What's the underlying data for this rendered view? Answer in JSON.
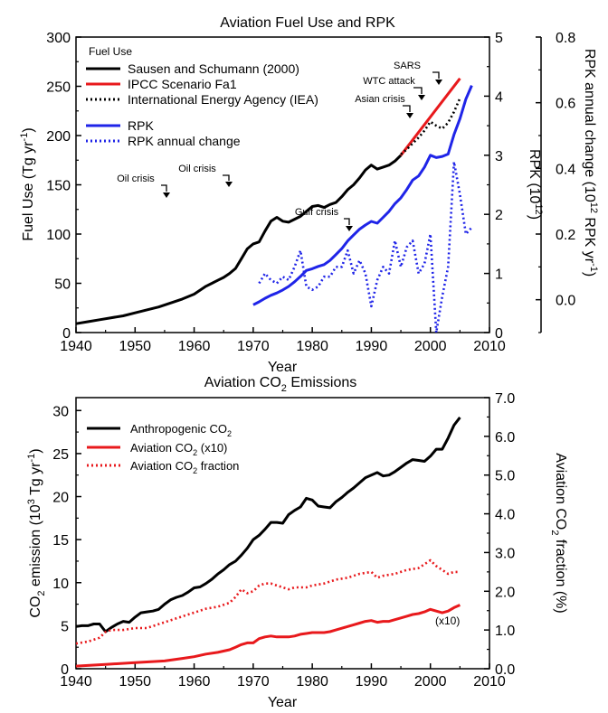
{
  "figure": {
    "charts": [
      {
        "title": "Aviation Fuel Use and RPK",
        "xlabel": "Year",
        "ylabel_left": "Fuel Use (Tg yr",
        "ylabel_left_sup": "-1",
        "ylabel_left_end": ")",
        "ylabel_right1": "RPK (10",
        "ylabel_right1_sup": "12",
        "ylabel_right1_end": ")",
        "ylabel_right2": "RPK annual change (10",
        "ylabel_right2_sup": "12",
        "ylabel_right2_mid": " RPK yr",
        "ylabel_right2_sup2": "-1",
        "ylabel_right2_end": ")",
        "legend": {
          "heading": "Fuel Use",
          "entries": [
            "Sausen and Schumann (2000)",
            "IPCC Scenario Fa1",
            "International Energy Agency (IEA)",
            "RPK",
            "RPK annual change"
          ]
        },
        "annotations": [
          "Oil crisis",
          "Oil crisis",
          "Gulf crisis",
          "Asian crisis",
          "WTC attack",
          "SARS"
        ],
        "x_ticks": [
          "1940",
          "1950",
          "1960",
          "1970",
          "1980",
          "1990",
          "2000",
          "2010"
        ],
        "y_left_ticks": [
          "0",
          "50",
          "100",
          "150",
          "200",
          "250",
          "300"
        ],
        "y_right1_ticks": [
          "0",
          "1",
          "2",
          "3",
          "4",
          "5"
        ],
        "y_right2_ticks": [
          "0.0",
          "0.2",
          "0.4",
          "0.6",
          "0.8"
        ]
      },
      {
        "title": "Aviation CO",
        "title_sub": "2",
        "title_end": " Emissions",
        "xlabel": "Year",
        "ylabel_left": "CO",
        "ylabel_left_sub": "2",
        "ylabel_left_mid": " emission (10",
        "ylabel_left_sup": "3",
        "ylabel_left_mid2": " Tg yr",
        "ylabel_left_sup2": "-1",
        "ylabel_left_end": ")",
        "ylabel_right": "Aviation CO",
        "ylabel_right_sub": "2",
        "ylabel_right_end": " fraction (%)",
        "legend": {
          "entries": [
            {
              "text": "Anthropogenic CO",
              "sub": "2",
              "end": ""
            },
            {
              "text": "Aviation CO",
              "sub": "2",
              "end": " (x10)"
            },
            {
              "text": "Aviation CO",
              "sub": "2",
              "end": " fraction"
            }
          ]
        },
        "annotation": "(x10)",
        "x_ticks": [
          "1940",
          "1950",
          "1960",
          "1970",
          "1980",
          "1990",
          "2000",
          "2010"
        ],
        "y_left_ticks": [
          "0",
          "5",
          "10",
          "15",
          "20",
          "25",
          "30"
        ],
        "y_right_ticks": [
          "0.0",
          "1.0",
          "2.0",
          "3.0",
          "4.0",
          "5.0",
          "6.0",
          "7.0"
        ]
      }
    ]
  },
  "chart_data": [
    {
      "type": "line",
      "title": "Aviation Fuel Use and RPK",
      "xlabel": "Year",
      "ylabel": "Fuel Use (Tg yr-1)",
      "xlim": [
        1940,
        2010
      ],
      "ylim": [
        0,
        300
      ],
      "y2lim_rpk": [
        0,
        5
      ],
      "y2lim_change": [
        -0.1,
        0.8
      ],
      "grid": false,
      "legend_position": "top-left",
      "series": [
        {
          "name": "Sausen and Schumann (2000)",
          "axis": "fuel",
          "style": "solid",
          "color": "#000000",
          "x": [
            1940,
            1942,
            1944,
            1946,
            1948,
            1950,
            1952,
            1954,
            1956,
            1958,
            1960,
            1961,
            1962,
            1963,
            1964,
            1965,
            1966,
            1967,
            1968,
            1969,
            1970,
            1971,
            1972,
            1973,
            1974,
            1975,
            1976,
            1977,
            1978,
            1979,
            1980,
            1981,
            1982,
            1983,
            1984,
            1985,
            1986,
            1987,
            1988,
            1989,
            1990,
            1991,
            1992,
            1993,
            1994,
            1995
          ],
          "y": [
            9,
            11,
            13,
            15,
            17,
            20,
            23,
            26,
            30,
            34,
            39,
            43,
            47,
            50,
            53,
            56,
            60,
            65,
            75,
            85,
            90,
            92,
            103,
            113,
            117,
            113,
            112,
            115,
            118,
            123,
            128,
            129,
            127,
            130,
            132,
            138,
            145,
            150,
            157,
            165,
            170,
            166,
            168,
            170,
            174,
            180
          ]
        },
        {
          "name": "IPCC Scenario Fa1",
          "axis": "fuel",
          "style": "solid",
          "color": "#e8191c",
          "x": [
            1995,
            2005
          ],
          "y": [
            180,
            258
          ]
        },
        {
          "name": "International Energy Agency (IEA)",
          "axis": "fuel",
          "style": "dotted",
          "color": "#000000",
          "x": [
            1995,
            1996,
            1997,
            1998,
            1999,
            2000,
            2001,
            2002,
            2003,
            2004,
            2005
          ],
          "y": [
            181,
            186,
            192,
            198,
            205,
            214,
            210,
            207,
            213,
            224,
            238
          ]
        },
        {
          "name": "RPK",
          "axis": "rpk",
          "style": "solid",
          "color": "#1f24e8",
          "x": [
            1970,
            1971,
            1972,
            1973,
            1974,
            1975,
            1976,
            1977,
            1978,
            1979,
            1980,
            1981,
            1982,
            1983,
            1984,
            1985,
            1986,
            1987,
            1988,
            1989,
            1990,
            1991,
            1992,
            1993,
            1994,
            1995,
            1996,
            1997,
            1998,
            1999,
            2000,
            2001,
            2002,
            2003,
            2004,
            2005,
            2006,
            2007
          ],
          "y": [
            0.47,
            0.52,
            0.58,
            0.63,
            0.67,
            0.72,
            0.78,
            0.86,
            0.95,
            1.05,
            1.08,
            1.12,
            1.15,
            1.22,
            1.32,
            1.42,
            1.55,
            1.65,
            1.75,
            1.82,
            1.88,
            1.85,
            1.95,
            2.05,
            2.18,
            2.28,
            2.42,
            2.58,
            2.65,
            2.8,
            3.0,
            2.96,
            2.98,
            3.02,
            3.35,
            3.62,
            3.95,
            4.18
          ]
        },
        {
          "name": "RPK annual change",
          "axis": "change",
          "style": "dotted",
          "color": "#1f24e8",
          "x": [
            1971,
            1972,
            1973,
            1974,
            1975,
            1976,
            1977,
            1978,
            1979,
            1980,
            1981,
            1982,
            1983,
            1984,
            1985,
            1986,
            1987,
            1988,
            1989,
            1990,
            1991,
            1992,
            1993,
            1994,
            1995,
            1996,
            1997,
            1998,
            1999,
            2000,
            2001,
            2002,
            2003,
            2004,
            2005,
            2006,
            2007
          ],
          "y": [
            0.05,
            0.08,
            0.06,
            0.05,
            0.07,
            0.06,
            0.1,
            0.15,
            0.04,
            0.03,
            0.04,
            0.07,
            0.07,
            0.1,
            0.1,
            0.15,
            0.08,
            0.12,
            0.08,
            -0.02,
            0.06,
            0.1,
            0.08,
            0.18,
            0.1,
            0.16,
            0.18,
            0.08,
            0.11,
            0.2,
            -0.1,
            0.01,
            0.1,
            0.42,
            0.32,
            0.2,
            0.22
          ]
        }
      ],
      "annotations": [
        {
          "text": "Oil crisis",
          "year": 1973.5
        },
        {
          "text": "Oil crisis",
          "year": 1979.5
        },
        {
          "text": "Gulf crisis",
          "year": 1991
        },
        {
          "text": "Asian crisis",
          "year": 1998
        },
        {
          "text": "WTC attack",
          "year": 2001
        },
        {
          "text": "SARS",
          "year": 2003.5
        }
      ]
    },
    {
      "type": "line",
      "title": "Aviation CO2 Emissions",
      "xlabel": "Year",
      "ylabel": "CO2 emission (10^3 Tg yr-1)",
      "y2label": "Aviation CO2 fraction (%)",
      "xlim": [
        1940,
        2010
      ],
      "ylim": [
        0,
        31.5
      ],
      "y2lim": [
        0,
        7.0
      ],
      "grid": false,
      "legend_position": "top-left",
      "series": [
        {
          "name": "Anthropogenic CO2",
          "axis": "left",
          "style": "solid",
          "color": "#000000",
          "x": [
            1940,
            1941,
            1942,
            1943,
            1944,
            1945,
            1946,
            1947,
            1948,
            1949,
            1950,
            1951,
            1952,
            1953,
            1954,
            1955,
            1956,
            1957,
            1958,
            1959,
            1960,
            1961,
            1962,
            1963,
            1964,
            1965,
            1966,
            1967,
            1968,
            1969,
            1970,
            1971,
            1972,
            1973,
            1974,
            1975,
            1976,
            1977,
            1978,
            1979,
            1980,
            1981,
            1982,
            1983,
            1984,
            1985,
            1986,
            1987,
            1988,
            1989,
            1990,
            1991,
            1992,
            1993,
            1994,
            1995,
            1996,
            1997,
            1998,
            1999,
            2000,
            2001,
            2002,
            2003,
            2004,
            2005
          ],
          "y": [
            4.9,
            5.0,
            5.0,
            5.2,
            5.2,
            4.3,
            4.8,
            5.2,
            5.5,
            5.4,
            6.0,
            6.5,
            6.6,
            6.7,
            6.9,
            7.5,
            8.0,
            8.3,
            8.5,
            8.9,
            9.4,
            9.5,
            9.9,
            10.4,
            11.0,
            11.5,
            12.1,
            12.5,
            13.2,
            14.0,
            15.0,
            15.5,
            16.2,
            17.0,
            17.0,
            16.9,
            17.9,
            18.4,
            18.8,
            19.8,
            19.6,
            18.9,
            18.8,
            18.7,
            19.4,
            19.9,
            20.5,
            21.0,
            21.6,
            22.2,
            22.5,
            22.8,
            22.4,
            22.5,
            22.9,
            23.4,
            23.9,
            24.3,
            24.2,
            24.1,
            24.7,
            25.5,
            25.5,
            26.8,
            28.3,
            29.2
          ]
        },
        {
          "name": "Aviation CO2 (x10)",
          "axis": "left",
          "style": "solid",
          "color": "#e8191c",
          "x": [
            1940,
            1945,
            1950,
            1955,
            1958,
            1960,
            1962,
            1964,
            1966,
            1967,
            1968,
            1969,
            1970,
            1971,
            1972,
            1973,
            1974,
            1975,
            1976,
            1977,
            1978,
            1979,
            1980,
            1981,
            1982,
            1983,
            1984,
            1985,
            1986,
            1987,
            1988,
            1989,
            1990,
            1991,
            1992,
            1993,
            1994,
            1995,
            1996,
            1997,
            1998,
            1999,
            2000,
            2001,
            2002,
            2003,
            2004,
            2005
          ],
          "y": [
            0.3,
            0.5,
            0.7,
            0.9,
            1.2,
            1.4,
            1.7,
            1.9,
            2.2,
            2.5,
            2.8,
            3.0,
            3.0,
            3.5,
            3.7,
            3.8,
            3.7,
            3.7,
            3.7,
            3.8,
            4.0,
            4.1,
            4.2,
            4.2,
            4.2,
            4.3,
            4.5,
            4.7,
            4.9,
            5.1,
            5.3,
            5.5,
            5.6,
            5.4,
            5.5,
            5.5,
            5.7,
            5.9,
            6.1,
            6.3,
            6.4,
            6.6,
            6.9,
            6.7,
            6.5,
            6.7,
            7.1,
            7.4
          ]
        },
        {
          "name": "Aviation CO2 fraction",
          "axis": "right",
          "style": "dotted",
          "color": "#e8191c",
          "x": [
            1940,
            1942,
            1944,
            1945,
            1946,
            1948,
            1950,
            1952,
            1954,
            1956,
            1958,
            1960,
            1962,
            1964,
            1966,
            1967,
            1968,
            1969,
            1970,
            1971,
            1972,
            1973,
            1974,
            1975,
            1976,
            1977,
            1978,
            1979,
            1980,
            1982,
            1984,
            1986,
            1988,
            1990,
            1991,
            1992,
            1994,
            1996,
            1998,
            2000,
            2001,
            2002,
            2003,
            2004,
            2005
          ],
          "y": [
            0.65,
            0.7,
            0.8,
            0.95,
            1.0,
            1.0,
            1.05,
            1.05,
            1.15,
            1.25,
            1.35,
            1.45,
            1.55,
            1.6,
            1.7,
            1.85,
            2.05,
            1.95,
            2.0,
            2.15,
            2.2,
            2.2,
            2.15,
            2.1,
            2.05,
            2.1,
            2.1,
            2.1,
            2.15,
            2.2,
            2.3,
            2.35,
            2.45,
            2.5,
            2.35,
            2.4,
            2.45,
            2.55,
            2.6,
            2.8,
            2.65,
            2.55,
            2.45,
            2.5,
            2.5
          ]
        }
      ]
    }
  ]
}
